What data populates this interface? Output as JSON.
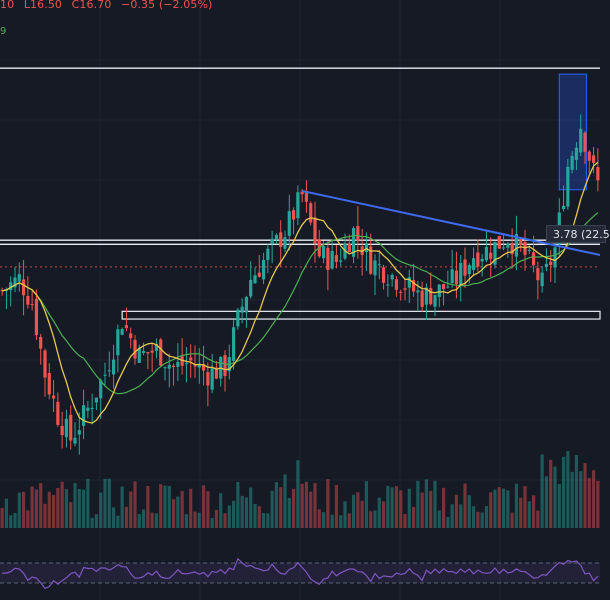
{
  "header": {
    "ohlc_parts": [
      "10",
      "L16.50",
      "C16.70",
      "−0.35 (−2.05%)"
    ],
    "ma_label": "9",
    "measure_label": "3.78 (22.5"
  },
  "colors": {
    "background": "#161a25",
    "up": "#26a69a",
    "down": "#ef5350",
    "ma_fast": "#e6c84a",
    "ma_slow": "#4caf50",
    "trendline": "#3f6bf0",
    "rsi": "#7e57c2",
    "level_lines": "#e8eef5",
    "price_line": "#ef5350"
  },
  "chart_data": {
    "type": "candlestick",
    "title": "",
    "price_range": [
      12.6,
      21.2
    ],
    "rsi_range": [
      0,
      100
    ],
    "rsi_bands": [
      30,
      70
    ],
    "horizontal_levels": [
      20.05,
      17.15,
      17.08
    ],
    "current_price": 16.7,
    "trendline": {
      "from": [
        70,
        17.98
      ],
      "to": [
        125,
        17.08
      ]
    },
    "measure_box": {
      "from_index": 130,
      "to_index": 134,
      "top": 19.95,
      "bottom": 18.0
    },
    "grid": false
  }
}
